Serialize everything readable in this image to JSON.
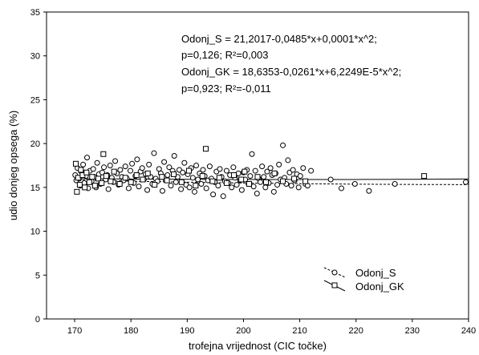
{
  "chart_data": {
    "type": "scatter",
    "xlabel": "trofejna vrijednost (CIC točke)",
    "ylabel": "udio donjeg opsega (%)",
    "xlim": [
      165,
      240
    ],
    "ylim": [
      0,
      35
    ],
    "xticks": [
      170,
      180,
      190,
      200,
      210,
      220,
      230,
      240
    ],
    "yticks": [
      0,
      5,
      10,
      15,
      20,
      25,
      30,
      35
    ],
    "grid": false,
    "legend_position": "bottom-right",
    "annotations": [
      "Odonj_S = 21,2017-0,0485*x+0,0001*x^2;",
      "p=0,126; R²=0,003",
      "Odonj_GK = 18,6353-0,0261*x+6,2249E-5*x^2;",
      "p=0,923; R²=-0,011"
    ],
    "series": [
      {
        "name": "Odonj_S",
        "marker": "circle",
        "fit_line": "dashed",
        "fit": {
          "a": 21.2017,
          "b": -0.0485,
          "c": 0.0001
        },
        "points": [
          [
            170.1,
            16.4
          ],
          [
            170.3,
            15.8
          ],
          [
            170.5,
            17.2
          ],
          [
            170.8,
            16.0
          ],
          [
            171.0,
            15.2
          ],
          [
            171.2,
            16.8
          ],
          [
            171.5,
            17.6
          ],
          [
            171.7,
            15.5
          ],
          [
            172.0,
            16.3
          ],
          [
            172.2,
            18.4
          ],
          [
            172.4,
            14.9
          ],
          [
            172.7,
            16.9
          ],
          [
            173.0,
            15.7
          ],
          [
            173.3,
            17.1
          ],
          [
            173.5,
            16.2
          ],
          [
            173.8,
            15.0
          ],
          [
            174.0,
            17.8
          ],
          [
            174.3,
            16.5
          ],
          [
            174.6,
            15.4
          ],
          [
            174.9,
            16.7
          ],
          [
            175.2,
            17.3
          ],
          [
            175.5,
            15.9
          ],
          [
            175.8,
            16.4
          ],
          [
            176.0,
            14.8
          ],
          [
            176.3,
            17.5
          ],
          [
            176.6,
            16.1
          ],
          [
            176.9,
            15.6
          ],
          [
            177.2,
            18.0
          ],
          [
            177.5,
            16.6
          ],
          [
            177.8,
            15.3
          ],
          [
            178.1,
            17.0
          ],
          [
            178.4,
            16.2
          ],
          [
            178.7,
            15.8
          ],
          [
            179.0,
            17.4
          ],
          [
            179.3,
            16.0
          ],
          [
            179.6,
            14.9
          ],
          [
            179.9,
            16.9
          ],
          [
            180.2,
            17.7
          ],
          [
            180.5,
            15.5
          ],
          [
            180.8,
            16.3
          ],
          [
            181.1,
            18.2
          ],
          [
            181.4,
            15.1
          ],
          [
            181.7,
            16.8
          ],
          [
            182.0,
            17.2
          ],
          [
            182.3,
            15.9
          ],
          [
            182.6,
            16.5
          ],
          [
            182.9,
            14.7
          ],
          [
            183.2,
            17.6
          ],
          [
            183.5,
            16.2
          ],
          [
            183.8,
            15.4
          ],
          [
            184.1,
            18.9
          ],
          [
            184.4,
            16.0
          ],
          [
            184.7,
            15.7
          ],
          [
            185.0,
            17.1
          ],
          [
            185.3,
            16.6
          ],
          [
            185.6,
            14.6
          ],
          [
            185.9,
            17.9
          ],
          [
            186.2,
            15.8
          ],
          [
            186.5,
            16.4
          ],
          [
            186.8,
            17.3
          ],
          [
            187.1,
            15.2
          ],
          [
            187.4,
            16.9
          ],
          [
            187.7,
            18.6
          ],
          [
            188.0,
            15.6
          ],
          [
            188.3,
            16.2
          ],
          [
            188.6,
            17.0
          ],
          [
            188.9,
            14.8
          ],
          [
            189.2,
            16.7
          ],
          [
            189.5,
            17.8
          ],
          [
            189.8,
            15.3
          ],
          [
            190.1,
            16.5
          ],
          [
            190.4,
            15.0
          ],
          [
            190.7,
            17.2
          ],
          [
            191.0,
            16.1
          ],
          [
            191.3,
            14.5
          ],
          [
            191.6,
            17.5
          ],
          [
            191.9,
            15.9
          ],
          [
            192.2,
            16.6
          ],
          [
            192.5,
            15.4
          ],
          [
            192.8,
            17.0
          ],
          [
            193.1,
            16.3
          ],
          [
            193.4,
            14.9
          ],
          [
            193.7,
            15.8
          ],
          [
            194.0,
            17.4
          ],
          [
            194.3,
            16.0
          ],
          [
            194.6,
            14.2
          ],
          [
            194.9,
            15.6
          ],
          [
            195.2,
            16.8
          ],
          [
            195.5,
            15.2
          ],
          [
            195.8,
            17.1
          ],
          [
            196.1,
            16.2
          ],
          [
            196.4,
            14.0
          ],
          [
            196.7,
            15.7
          ],
          [
            197.0,
            16.9
          ],
          [
            197.3,
            15.5
          ],
          [
            197.6,
            16.4
          ],
          [
            197.9,
            15.0
          ],
          [
            198.2,
            17.3
          ],
          [
            198.5,
            16.1
          ],
          [
            198.8,
            15.3
          ],
          [
            199.1,
            16.6
          ],
          [
            199.4,
            15.8
          ],
          [
            199.7,
            14.7
          ],
          [
            200.0,
            16.7
          ],
          [
            200.3,
            15.9
          ],
          [
            200.6,
            17.0
          ],
          [
            200.9,
            15.4
          ],
          [
            201.2,
            16.3
          ],
          [
            201.5,
            18.8
          ],
          [
            201.8,
            15.1
          ],
          [
            202.1,
            16.9
          ],
          [
            202.4,
            14.3
          ],
          [
            202.7,
            16.0
          ],
          [
            203.0,
            15.6
          ],
          [
            203.3,
            17.4
          ],
          [
            203.6,
            16.2
          ],
          [
            203.9,
            15.0
          ],
          [
            204.2,
            16.8
          ],
          [
            204.5,
            15.5
          ],
          [
            204.8,
            17.2
          ],
          [
            205.1,
            16.4
          ],
          [
            205.4,
            14.5
          ],
          [
            205.7,
            16.6
          ],
          [
            206.0,
            15.3
          ],
          [
            206.3,
            17.6
          ],
          [
            206.6,
            15.9
          ],
          [
            207.0,
            19.8
          ],
          [
            207.3,
            16.1
          ],
          [
            207.6,
            15.4
          ],
          [
            207.9,
            18.1
          ],
          [
            208.2,
            16.7
          ],
          [
            208.5,
            15.2
          ],
          [
            208.8,
            17.0
          ],
          [
            209.1,
            15.8
          ],
          [
            209.5,
            16.5
          ],
          [
            209.8,
            15.0
          ],
          [
            210.1,
            16.3
          ],
          [
            210.6,
            17.2
          ],
          [
            211.0,
            15.4
          ],
          [
            211.4,
            15.2
          ],
          [
            212.0,
            16.9
          ],
          [
            215.5,
            15.9
          ],
          [
            217.4,
            14.9
          ],
          [
            219.8,
            15.4
          ],
          [
            222.3,
            14.6
          ],
          [
            226.9,
            15.4
          ],
          [
            239.5,
            15.6
          ]
        ]
      },
      {
        "name": "Odonj_GK",
        "marker": "square",
        "fit_line": "solid",
        "fit": {
          "a": 18.6353,
          "b": -0.0261,
          "c": 6.2249e-05
        },
        "points": [
          [
            170.2,
            17.7
          ],
          [
            170.4,
            14.5
          ],
          [
            170.6,
            16.1
          ],
          [
            170.9,
            15.3
          ],
          [
            171.1,
            17.0
          ],
          [
            171.4,
            16.4
          ],
          [
            171.8,
            15.0
          ],
          [
            172.1,
            16.7
          ],
          [
            172.6,
            15.6
          ],
          [
            173.1,
            16.2
          ],
          [
            173.6,
            15.2
          ],
          [
            174.2,
            16.0
          ],
          [
            174.8,
            15.5
          ],
          [
            175.1,
            18.8
          ],
          [
            175.6,
            16.3
          ],
          [
            176.4,
            15.7
          ],
          [
            177.0,
            16.8
          ],
          [
            178.0,
            15.4
          ],
          [
            179.0,
            16.1
          ],
          [
            180.0,
            15.6
          ],
          [
            181.0,
            16.4
          ],
          [
            182.1,
            15.9
          ],
          [
            183.0,
            16.6
          ],
          [
            184.2,
            15.3
          ],
          [
            185.5,
            16.2
          ],
          [
            186.4,
            15.8
          ],
          [
            187.6,
            16.5
          ],
          [
            189.0,
            15.6
          ],
          [
            190.3,
            16.9
          ],
          [
            191.5,
            15.2
          ],
          [
            192.7,
            16.3
          ],
          [
            193.3,
            19.4
          ],
          [
            194.5,
            15.7
          ],
          [
            195.7,
            16.1
          ],
          [
            197.0,
            15.5
          ],
          [
            198.3,
            16.4
          ],
          [
            199.6,
            15.9
          ],
          [
            200.2,
            16.8
          ],
          [
            201.0,
            15.4
          ],
          [
            202.5,
            16.2
          ],
          [
            204.0,
            15.6
          ],
          [
            205.5,
            16.6
          ],
          [
            207.0,
            15.7
          ],
          [
            209.0,
            16.0
          ],
          [
            211.0,
            15.7
          ],
          [
            232.1,
            16.3
          ]
        ]
      }
    ]
  }
}
